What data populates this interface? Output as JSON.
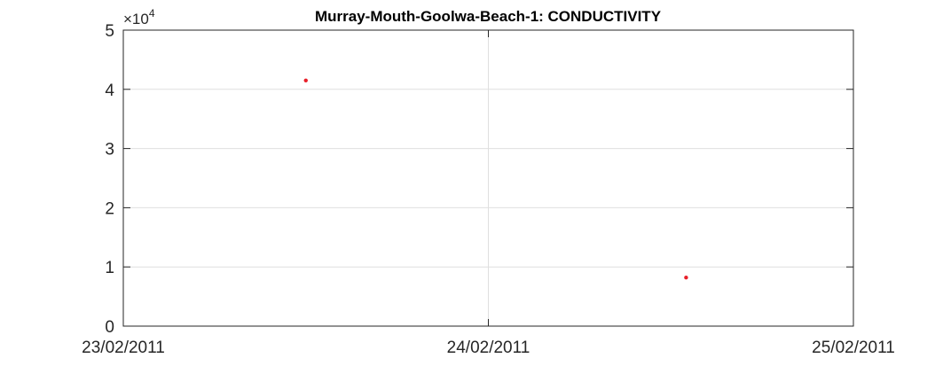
{
  "chart_data": {
    "type": "scatter",
    "title": "Murray-Mouth-Goolwa-Beach-1: CONDUCTIVITY",
    "xlabel": "",
    "ylabel": "",
    "y_multiplier": "×10",
    "y_exponent": "4",
    "xlim": [
      "23/02/2011",
      "25/02/2011"
    ],
    "ylim": [
      0,
      50000
    ],
    "x_ticks": [
      "23/02/2011",
      "24/02/2011",
      "25/02/2011"
    ],
    "y_ticks": [
      "0",
      "1",
      "2",
      "3",
      "4",
      "5"
    ],
    "y_tick_values": [
      0,
      10000,
      20000,
      30000,
      40000,
      50000
    ],
    "grid": true,
    "series": [
      {
        "color": "#e8202a",
        "points": [
          {
            "x": "23/02/2011 12:00",
            "y": 41500
          },
          {
            "x": "24/02/2011 13:00",
            "y": 8200
          }
        ]
      }
    ]
  }
}
